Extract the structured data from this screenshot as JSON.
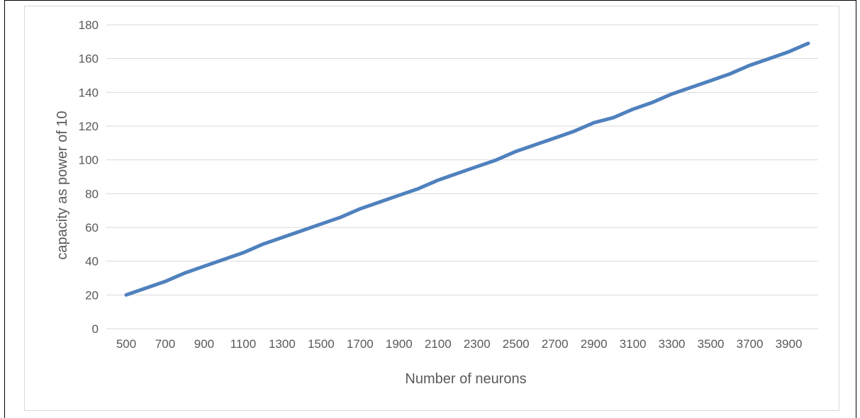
{
  "chart_data": {
    "type": "line",
    "title": "",
    "xlabel": "Number of neurons",
    "ylabel": "capacity  as power of 10",
    "x": [
      500,
      600,
      700,
      800,
      900,
      1000,
      1100,
      1200,
      1300,
      1400,
      1500,
      1600,
      1700,
      1800,
      1900,
      2000,
      2100,
      2200,
      2300,
      2400,
      2500,
      2600,
      2700,
      2800,
      2900,
      3000,
      3100,
      3200,
      3300,
      3400,
      3500,
      3600,
      3700,
      3800,
      3900,
      4000
    ],
    "x_tick_labels": [
      "500",
      "700",
      "900",
      "1100",
      "1300",
      "1500",
      "1700",
      "1900",
      "2100",
      "2300",
      "2500",
      "2700",
      "2900",
      "3100",
      "3300",
      "3500",
      "3700",
      "3900"
    ],
    "y_tick_labels": [
      "0",
      "20",
      "40",
      "60",
      "80",
      "100",
      "120",
      "140",
      "160",
      "180"
    ],
    "ylim": [
      0,
      180
    ],
    "grid": true,
    "legend": "none",
    "series": [
      {
        "values": [
          20,
          24,
          28,
          33,
          37,
          41,
          45,
          50,
          54,
          58,
          62,
          66,
          71,
          75,
          79,
          83,
          88,
          92,
          96,
          100,
          105,
          109,
          113,
          117,
          122,
          125,
          130,
          134,
          139,
          143,
          147,
          151,
          156,
          160,
          164,
          169
        ]
      }
    ],
    "colors": {
      "line": "#4f81bd",
      "grid": "#d9d9d9",
      "text": "#595959"
    }
  }
}
